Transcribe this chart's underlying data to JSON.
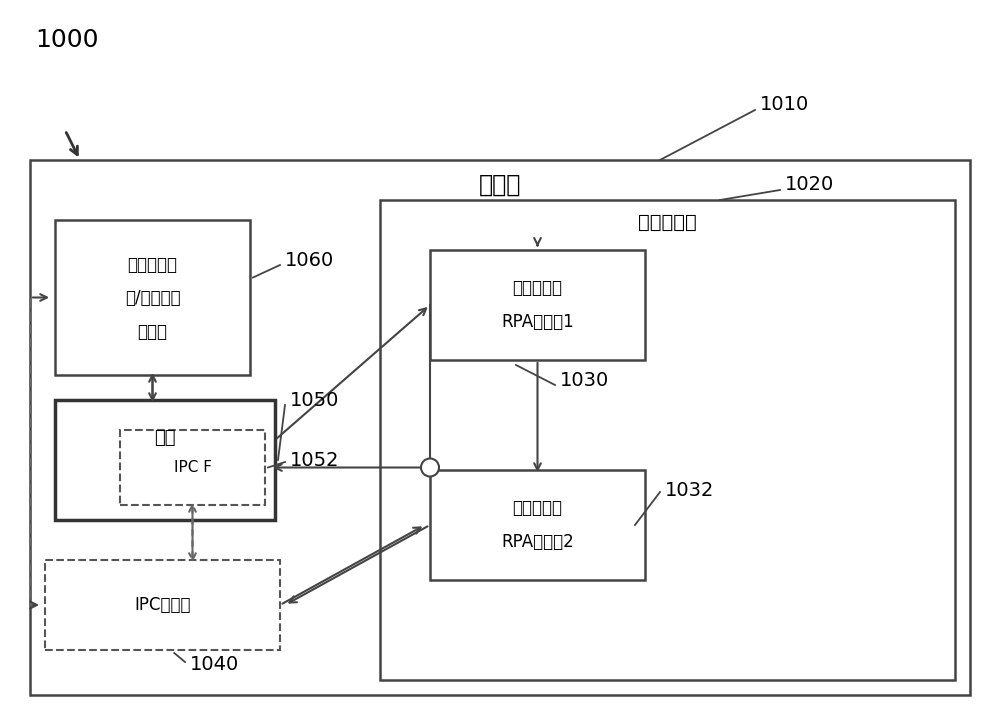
{
  "bg_color": "#ffffff",
  "fig_width": 10.0,
  "fig_height": 7.24,
  "label_1000": "1000",
  "label_1010": "1010",
  "label_1020": "1020",
  "label_1030": "1030",
  "label_1032": "1032",
  "label_1040": "1040",
  "label_1050": "1050",
  "label_1052": "1052",
  "label_1060": "1060",
  "main_session_label": "主会话",
  "client_session_label": "客户端会话",
  "box_app_line1": "主会话应用",
  "box_app_line2": "和/或相关联",
  "box_app_line3": "的对象",
  "box_driver_label": "驱动",
  "box_ipcf_label": "IPC F",
  "box_ipcfacil_label": "IPC促进器",
  "box_robot1_line1": "客户端会话",
  "box_robot1_line2": "RPA机器人1",
  "box_robot2_line1": "客户端会话",
  "box_robot2_line2": "RPA机器人2"
}
